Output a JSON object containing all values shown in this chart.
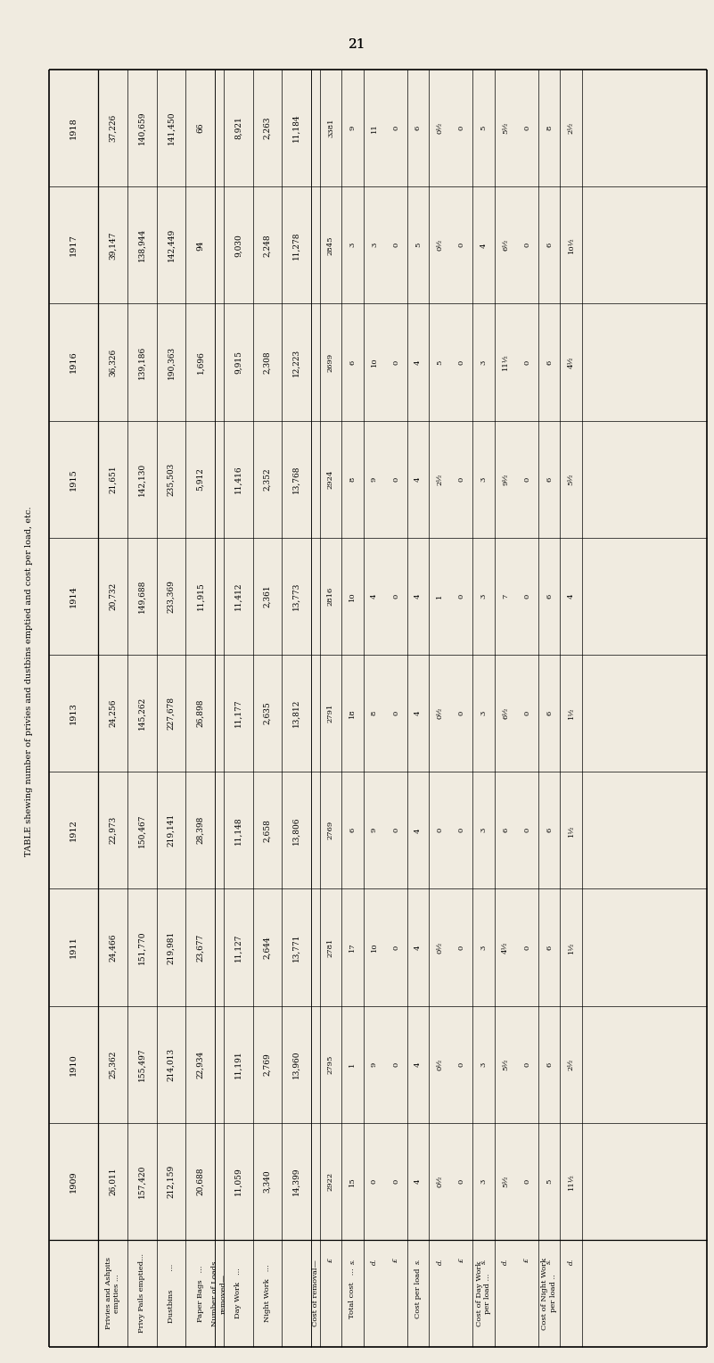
{
  "title": "21",
  "table_title": "TABLE shewing number of privies and dustbins emptied and cost per load, etc.",
  "background_color": "#f0ebe0",
  "years": [
    "1918",
    "1917",
    "1916",
    "1915",
    "1914",
    "1913",
    "1912",
    "1911",
    "1910",
    "1909"
  ],
  "col_labels": [
    "Privies and Ashpits\nempties ...",
    "Privy Pails emptied...",
    "Dustbins        ...",
    "Paper Bags   ...",
    "Number of Loads\nremoved—",
    "Day Work   ...",
    "Night Work   ...",
    " ",
    "Cost of removal—",
    "Total cost   ...",
    "Cost per load",
    "Cost of Day Work\nper load ...",
    "Cost of Night Work\nper load .."
  ],
  "data": {
    "privies": [
      "37,226",
      "39,147",
      "36,326",
      "21,651",
      "20,732",
      "24,256",
      "22,973",
      "24,466",
      "25,362",
      "26,011"
    ],
    "privy_pails": [
      "140,659",
      "138,944",
      "139,186",
      "142,130",
      "149,688",
      "145,262",
      "150,467",
      "151,770",
      "155,497",
      "157,420"
    ],
    "dustbins": [
      "141,450",
      "142,449",
      "190,363",
      "235,503",
      "233,369",
      "227,678",
      "219,141",
      "219,981",
      "214,013",
      "212,159"
    ],
    "paper_bags": [
      "66",
      "94",
      "1,696",
      "5,912",
      "11,915",
      "26,898",
      "28,398",
      "23,677",
      "22,934",
      "20,688"
    ],
    "day_work": [
      "8,921",
      "9,030",
      "9,915",
      "11,416",
      "11,412",
      "11,177",
      "11,148",
      "11,127",
      "11,191",
      "11,059"
    ],
    "night_work": [
      "2,263",
      "2,248",
      "2,308",
      "2,352",
      "2,361",
      "2,635",
      "2,658",
      "2,644",
      "2,769",
      "3,340"
    ],
    "total_loads": [
      "11,184",
      "11,278",
      "12,223",
      "13,768",
      "13,773",
      "13,812",
      "13,806",
      "13,771",
      "13,960",
      "14,399"
    ],
    "cost_removal_pounds": [
      "3381",
      "2845",
      "2699",
      "2924",
      "2816",
      "2791",
      "2769",
      "2781",
      "2795",
      "2922"
    ],
    "cost_removal_shillings": [
      "9",
      "3",
      "6",
      "8",
      "10",
      "18",
      "6",
      "17",
      "1",
      "15"
    ],
    "cost_removal_pence": [
      "11",
      "3",
      "10",
      "9",
      "4",
      "8",
      "9",
      "10",
      "9",
      "0"
    ],
    "cost_per_load_pounds": [
      "0",
      "0",
      "0",
      "0",
      "0",
      "0",
      "0",
      "0",
      "0",
      "0"
    ],
    "cost_per_load_shillings": [
      "6",
      "5",
      "4",
      "4",
      "4",
      "4",
      "4",
      "4",
      "4",
      "4"
    ],
    "cost_per_load_pence": [
      "0½",
      "0½",
      "5",
      "2½",
      "1",
      "0½",
      "0",
      "0½",
      "0½",
      "0½"
    ],
    "day_work_per_load_pounds": [
      "0",
      "0",
      "0",
      "0",
      "0",
      "0",
      "0",
      "0",
      "0",
      "0"
    ],
    "day_work_per_load_shillings": [
      "5",
      "4",
      "3",
      "3",
      "3",
      "3",
      "3",
      "3",
      "3",
      "3"
    ],
    "day_work_per_load_pence": [
      "5½",
      "6½",
      "11½",
      "9½",
      "7",
      "6½",
      "6",
      "4½",
      "5½",
      "5½"
    ],
    "night_work_per_load_pounds": [
      "0",
      "0",
      "0",
      "0",
      "0",
      "0",
      "0",
      "0",
      "0",
      "0"
    ],
    "night_work_per_load_shillings": [
      "8",
      "6",
      "6",
      "6",
      "6",
      "6",
      "6",
      "6",
      "6",
      "5"
    ],
    "night_work_per_load_pence": [
      "2½",
      "10½",
      "4½",
      "5½",
      "4",
      "1½",
      "1½",
      "1½",
      "2½",
      "11½"
    ]
  }
}
